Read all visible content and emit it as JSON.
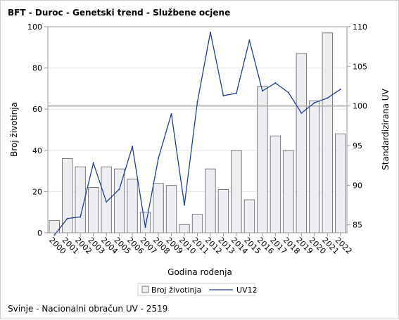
{
  "chart_data": {
    "type": "bar",
    "title": "BFT - Duroc - Genetski trend - Službene ocjene",
    "xlabel": "Godina rođenja",
    "ylabel_left": "Broj životinja",
    "ylabel_right": "Standardizirana UV",
    "footnote": "Svinje - Nacionalni obračun UV - 2519",
    "categories": [
      "2000",
      "2001",
      "2002",
      "2003",
      "2004",
      "2005",
      "2006",
      "2007",
      "2008",
      "2009",
      "2010",
      "2011",
      "2012",
      "2013",
      "2014",
      "2015",
      "2016",
      "2017",
      "2018",
      "2019",
      "2020",
      "2021",
      "2022"
    ],
    "series": [
      {
        "name": "Broj životinja",
        "type": "bar",
        "axis": "left",
        "values": [
          6,
          36,
          32,
          22,
          32,
          31,
          26,
          10,
          24,
          23,
          4,
          9,
          31,
          21,
          40,
          16,
          71,
          47,
          40,
          87,
          64,
          97,
          48
        ]
      },
      {
        "name": "UV12",
        "type": "line",
        "axis": "right",
        "values": [
          83.7,
          85.8,
          86.0,
          92.8,
          87.9,
          89.5,
          94.9,
          84.7,
          93.4,
          99.0,
          87.5,
          100.5,
          109.3,
          101.3,
          101.6,
          108.3,
          101.9,
          102.9,
          101.7,
          99.1,
          100.4,
          101.0,
          102.1
        ]
      }
    ],
    "ylim_left": [
      0,
      100
    ],
    "ylim_right": [
      84,
      110
    ],
    "yticks_left": [
      0,
      20,
      40,
      60,
      80,
      100
    ],
    "yticks_right": [
      85,
      90,
      95,
      100,
      105,
      110
    ],
    "reference_line_right": 100,
    "grid": true,
    "legend_position": "bottom",
    "colors": {
      "bar_fill": "#eceef2",
      "bar_stroke": "#7a7a7a",
      "line": "#1f3f8f",
      "reference": "#a8a8a8",
      "grid": "#e6e6e6",
      "axis": "#9a9a9a"
    }
  }
}
